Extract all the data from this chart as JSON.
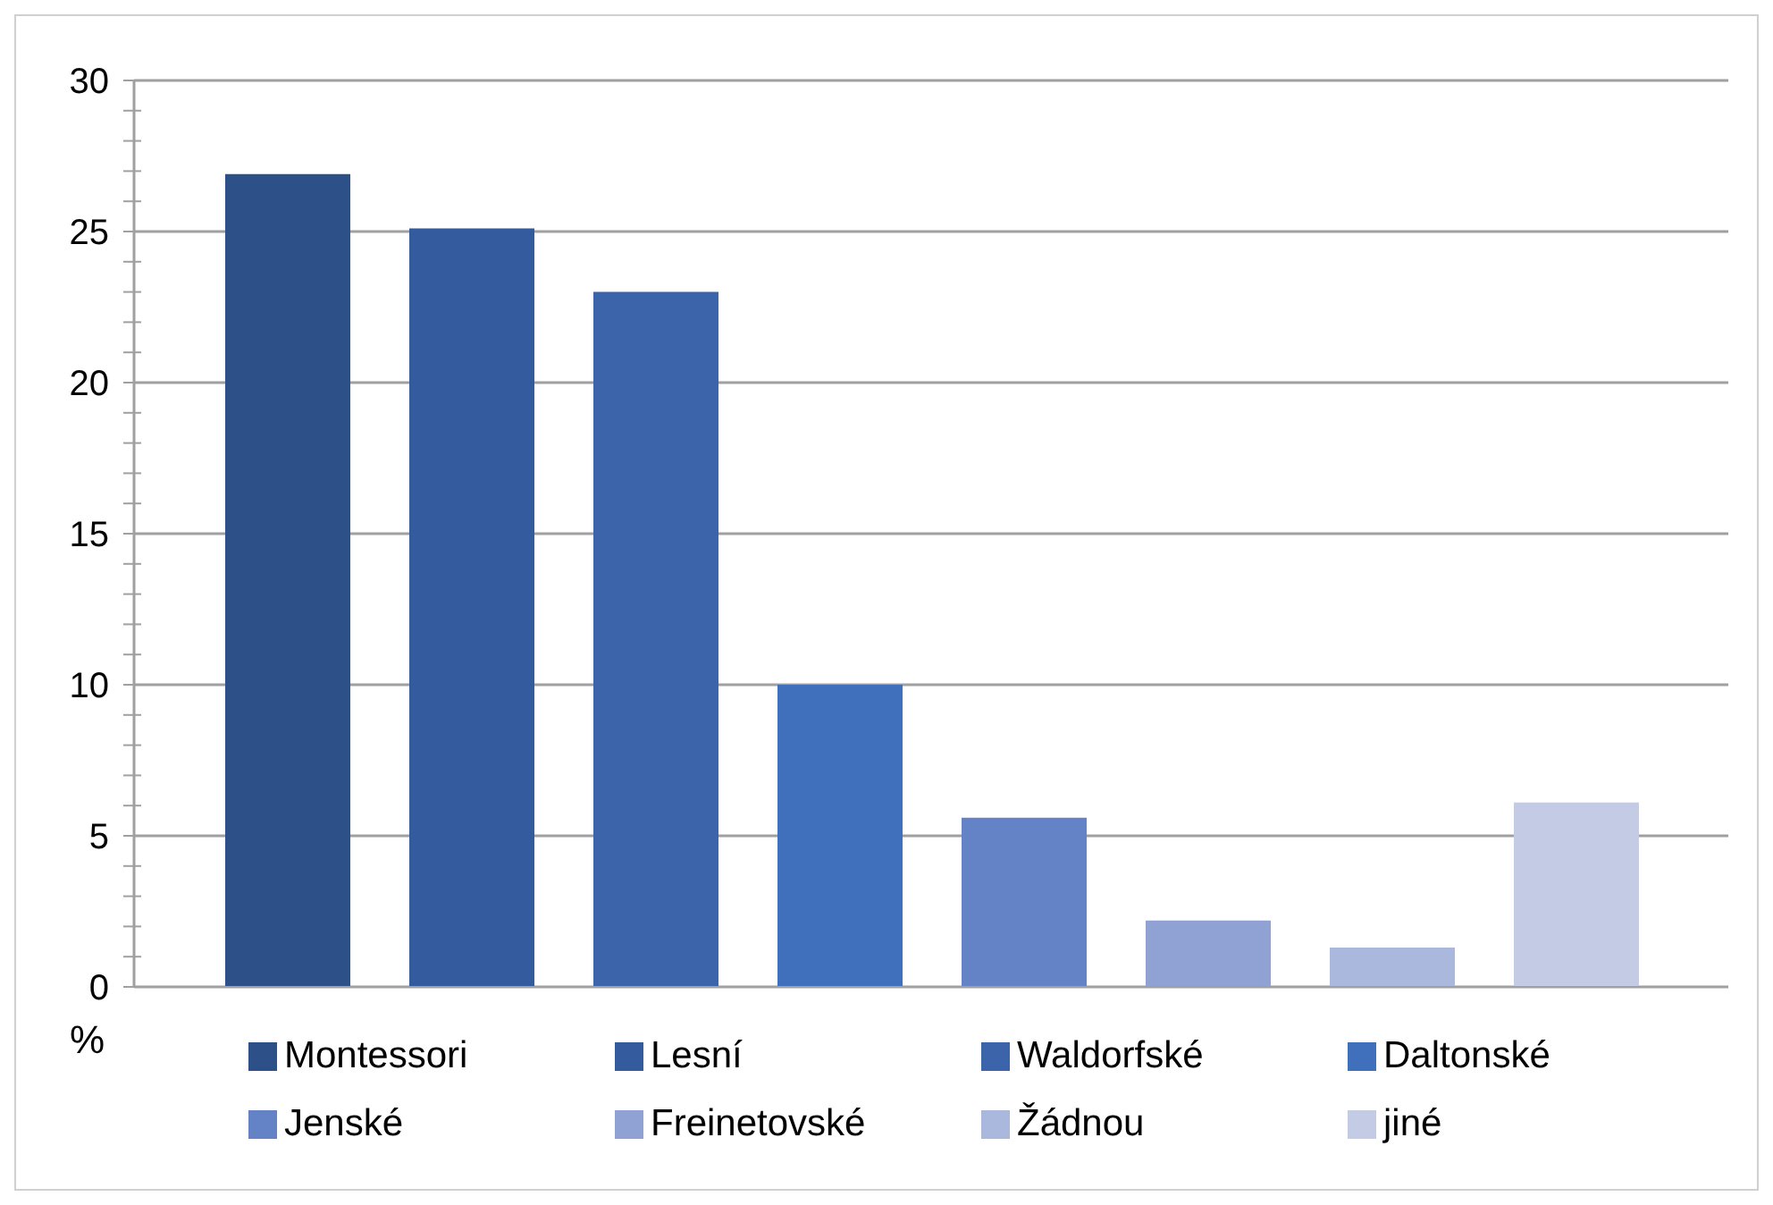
{
  "chart_data": {
    "type": "bar",
    "ylabel": "%",
    "categories": [
      null
    ],
    "series": [
      {
        "name": "Montessori",
        "color": "#2e5089",
        "values": [
          26.9
        ]
      },
      {
        "name": "Lesní",
        "color": "#355b9f",
        "values": [
          25.1
        ]
      },
      {
        "name": "Waldorfské",
        "color": "#3c64aa",
        "values": [
          23.0
        ]
      },
      {
        "name": "Daltonské",
        "color": "#406fbb",
        "values": [
          10.0
        ]
      },
      {
        "name": "Jenské",
        "color": "#6483c7",
        "values": [
          5.6
        ]
      },
      {
        "name": "Freinetovské",
        "color": "#8fa2d3",
        "values": [
          2.2
        ]
      },
      {
        "name": "Žádnou",
        "color": "#abb8dd",
        "values": [
          1.3
        ]
      },
      {
        "name": "jiné",
        "color": "#c4cce5",
        "values": [
          6.1
        ]
      }
    ],
    "ylim": [
      0,
      30
    ],
    "yticks": [
      0,
      {
        "value": 1,
        "label": null
      },
      {
        "value": 2,
        "label": null
      },
      {
        "value": 3,
        "label": null
      },
      {
        "value": 4,
        "label": null
      },
      5,
      {
        "value": 6,
        "label": null
      },
      {
        "value": 7,
        "label": null
      },
      {
        "value": 8,
        "label": null
      },
      {
        "value": 9,
        "label": null
      },
      10,
      {
        "value": 11,
        "label": null
      },
      {
        "value": 12,
        "label": null
      },
      {
        "value": 13,
        "label": null
      },
      {
        "value": 14,
        "label": null
      },
      15,
      {
        "value": 16,
        "label": null
      },
      {
        "value": 17,
        "label": null
      },
      {
        "value": 18,
        "label": null
      },
      {
        "value": 19,
        "label": null
      },
      20,
      {
        "value": 21,
        "label": null
      },
      {
        "value": 22,
        "label": null
      },
      {
        "value": 23,
        "label": null
      },
      {
        "value": 24,
        "label": null
      },
      25,
      {
        "value": 26,
        "label": null
      },
      {
        "value": 27,
        "label": null
      },
      {
        "value": 28,
        "label": null
      },
      {
        "value": 29,
        "label": null
      },
      30
    ],
    "grid": "y",
    "legend": "bottom"
  }
}
